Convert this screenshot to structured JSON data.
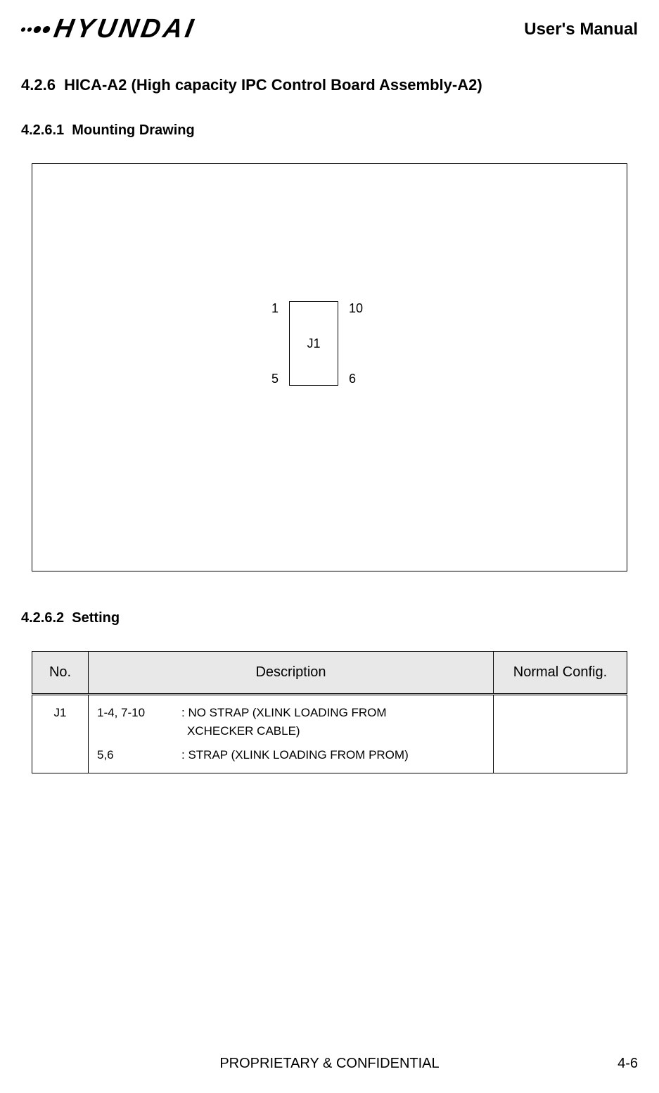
{
  "header": {
    "brand": "HYUNDAI",
    "doc_title": "User's Manual"
  },
  "section": {
    "number": "4.2.6",
    "title": "HICA-A2 (High capacity IPC Control Board Assembly-A2)"
  },
  "subsection1": {
    "number": "4.2.6.1",
    "title": "Mounting Drawing"
  },
  "diagram": {
    "connector_label": "J1",
    "pins": {
      "top_left": "1",
      "bottom_left": "5",
      "top_right": "10",
      "bottom_right": "6"
    }
  },
  "subsection2": {
    "number": "4.2.6.2",
    "title": "Setting"
  },
  "table": {
    "headers": {
      "no": "No.",
      "description": "Description",
      "normal_config": "Normal Config."
    },
    "rows": [
      {
        "no": "J1",
        "desc_lines": [
          {
            "key": "1-4, 7-10",
            "val": ": NO STRAP (XLINK LOADING FROM"
          },
          {
            "indent": " XCHECKER CABLE)"
          },
          {
            "key": "5,6",
            "val": ": STRAP (XLINK LOADING FROM PROM)"
          }
        ],
        "normal_config": ""
      }
    ]
  },
  "footer": {
    "classification": "PROPRIETARY & CONFIDENTIAL",
    "page": "4-6"
  }
}
